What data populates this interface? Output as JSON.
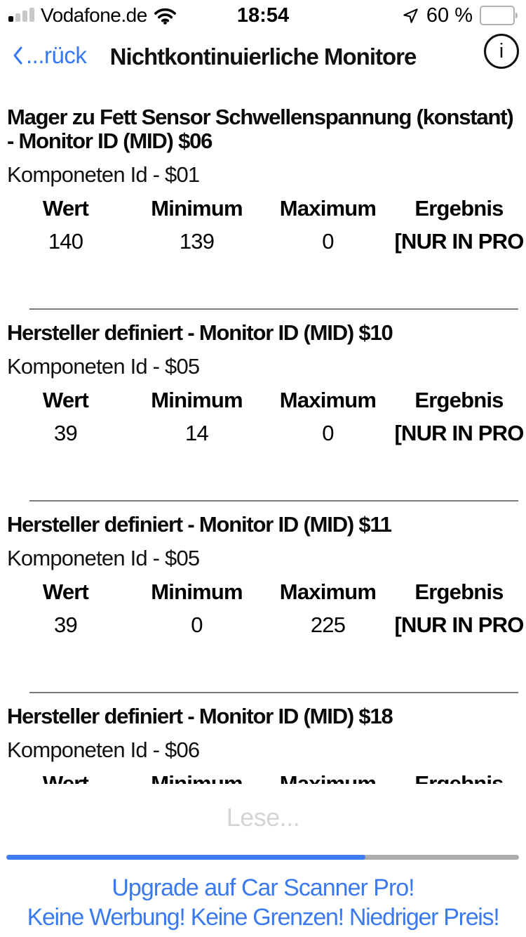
{
  "status_bar": {
    "carrier": "Vodafone.de",
    "time": "18:54",
    "battery_label": "60 %",
    "battery_fill_percent": 60,
    "icons": {
      "signal": "cellular-signal-icon",
      "wifi": "wifi-icon",
      "location": "location-arrow-icon",
      "battery": "battery-icon"
    }
  },
  "nav_bar": {
    "back_label": "...rück",
    "back_icon": "chevron-left-icon",
    "title": "Nichtkontinuierliche Monitore",
    "info_label": "i",
    "info_icon": "info-circle-icon"
  },
  "table_headers": [
    "Wert",
    "Minimum",
    "Maximum",
    "Ergebnis"
  ],
  "monitors": [
    {
      "title": "Mager zu Fett Sensor Schwellenspannung (konstant) - Monitor ID (MID) $06",
      "component": "Komponeten Id - $01",
      "wert": "140",
      "minimum": "139",
      "maximum": "0",
      "ergebnis": "[NUR IN PRO"
    },
    {
      "title": "Hersteller definiert - Monitor ID (MID) $10",
      "component": "Komponeten Id - $05",
      "wert": "39",
      "minimum": "14",
      "maximum": "0",
      "ergebnis": "[NUR IN PRO"
    },
    {
      "title": "Hersteller definiert - Monitor ID (MID) $11",
      "component": "Komponeten Id - $05",
      "wert": "39",
      "minimum": "0",
      "maximum": "225",
      "ergebnis": "[NUR IN PRO"
    },
    {
      "title": "Hersteller definiert - Monitor ID (MID) $18",
      "component": "Komponeten Id - $06",
      "clipped": true
    }
  ],
  "loading": {
    "label": "Lese...",
    "progress_percent": 70
  },
  "ad_banner": {
    "line1": "Upgrade auf Car Scanner Pro!",
    "line2": "Keine Werbung! Keine Grenzen! Niedriger Preis!"
  },
  "colors": {
    "link_blue": "#3478f6",
    "progress_blue": "#3d7cf5",
    "progress_track": "#acacac",
    "divider_gray": "#7b7b7b",
    "loading_gray": "#d5d5d5"
  }
}
